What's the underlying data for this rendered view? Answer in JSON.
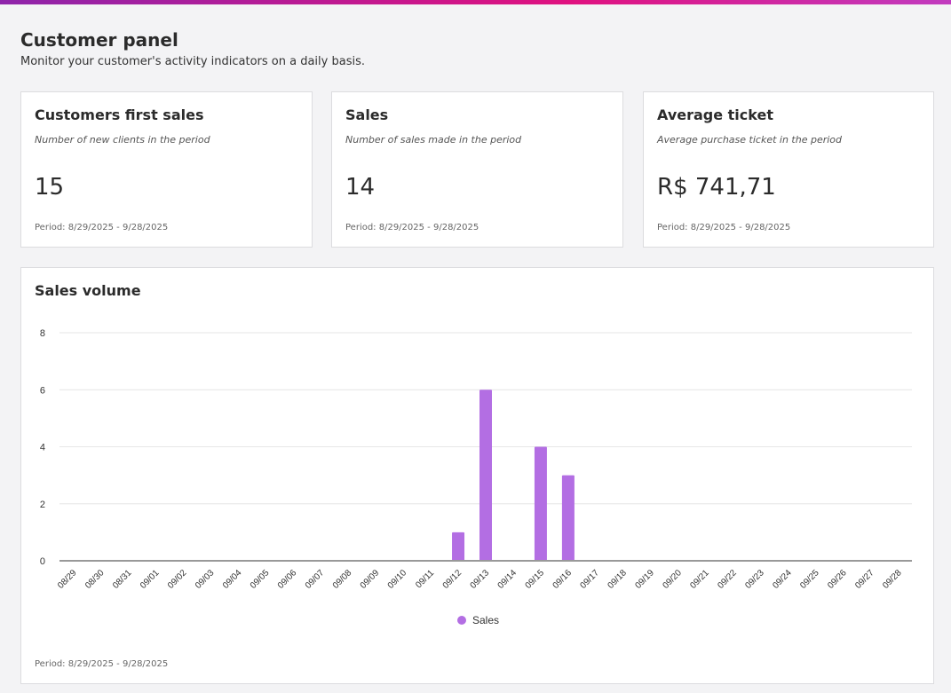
{
  "header": {
    "title": "Customer panel",
    "subtitle": "Monitor your customer's activity indicators on a daily basis."
  },
  "cards": [
    {
      "title": "Customers first sales",
      "description": "Number of new clients in the period",
      "value": "15",
      "period": "Period: 8/29/2025 - 9/28/2025"
    },
    {
      "title": "Sales",
      "description": "Number of sales made in the period",
      "value": "14",
      "period": "Period: 8/29/2025 - 9/28/2025"
    },
    {
      "title": "Average ticket",
      "description": "Average purchase ticket in the period",
      "value": "R$ 741,71",
      "period": "Period: 8/29/2025 - 9/28/2025"
    }
  ],
  "chart_card": {
    "title": "Sales volume",
    "period": "Period: 8/29/2025 - 9/28/2025"
  },
  "chart_data": {
    "type": "bar",
    "title": "Sales volume",
    "categories": [
      "08/29",
      "08/30",
      "08/31",
      "09/01",
      "09/02",
      "09/03",
      "09/04",
      "09/05",
      "09/06",
      "09/07",
      "09/08",
      "09/09",
      "09/10",
      "09/11",
      "09/12",
      "09/13",
      "09/14",
      "09/15",
      "09/16",
      "09/17",
      "09/18",
      "09/19",
      "09/20",
      "09/21",
      "09/22",
      "09/23",
      "09/24",
      "09/25",
      "09/26",
      "09/27",
      "09/28"
    ],
    "series": [
      {
        "name": "Sales",
        "color": "#b36ee3",
        "values": [
          0,
          0,
          0,
          0,
          0,
          0,
          0,
          0,
          0,
          0,
          0,
          0,
          0,
          0,
          1,
          6,
          0,
          4,
          3,
          0,
          0,
          0,
          0,
          0,
          0,
          0,
          0,
          0,
          0,
          0,
          0
        ]
      }
    ],
    "ylim": [
      0,
      8
    ],
    "yticks": [
      0,
      2,
      4,
      6,
      8
    ],
    "grid": true,
    "legend": "bottom"
  }
}
